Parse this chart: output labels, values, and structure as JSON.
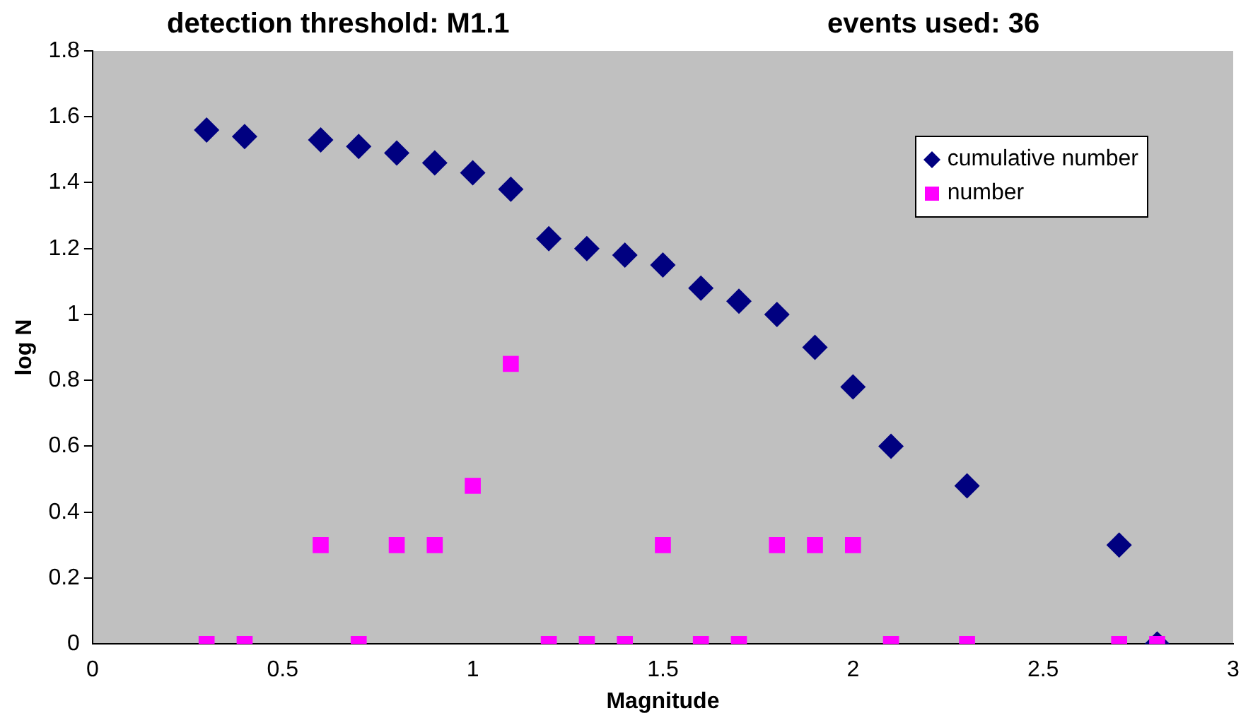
{
  "chart_data": {
    "type": "scatter",
    "title": "detection threshold: M1.1",
    "subtitle": "events used: 36",
    "xlabel": "Magnitude",
    "ylabel": "log N",
    "xlim": [
      0,
      3
    ],
    "xticks": [
      0,
      0.5,
      1,
      1.5,
      2,
      2.5,
      3
    ],
    "ylim": [
      0,
      1.8
    ],
    "yticks": [
      0,
      0.2,
      0.4,
      0.6,
      0.8,
      1,
      1.2,
      1.4,
      1.6,
      1.8
    ],
    "grid": false,
    "legend": "top right",
    "series": [
      {
        "name": "cumulative number",
        "color": "#000080",
        "marker": "diamond",
        "x": [
          0.3,
          0.4,
          0.6,
          0.7,
          0.8,
          0.9,
          1.0,
          1.1,
          1.2,
          1.3,
          1.4,
          1.5,
          1.6,
          1.7,
          1.8,
          1.9,
          2.0,
          2.1,
          2.3,
          2.7,
          2.8
        ],
        "values": [
          1.56,
          1.54,
          1.53,
          1.51,
          1.49,
          1.46,
          1.43,
          1.38,
          1.23,
          1.2,
          1.18,
          1.15,
          1.08,
          1.04,
          1.0,
          0.9,
          0.78,
          0.6,
          0.48,
          0.3,
          0
        ]
      },
      {
        "name": "number",
        "color": "#ff00ff",
        "marker": "square",
        "x": [
          0.3,
          0.4,
          0.6,
          0.7,
          0.8,
          0.9,
          1.0,
          1.1,
          1.2,
          1.3,
          1.4,
          1.5,
          1.6,
          1.7,
          1.8,
          1.9,
          2.0,
          2.1,
          2.3,
          2.7,
          2.8
        ],
        "values": [
          0,
          0,
          0.3,
          0,
          0.3,
          0.3,
          0.48,
          0.85,
          0,
          0,
          0,
          0.3,
          0,
          0,
          0.3,
          0.3,
          0.3,
          0,
          0,
          0,
          0
        ]
      }
    ]
  }
}
